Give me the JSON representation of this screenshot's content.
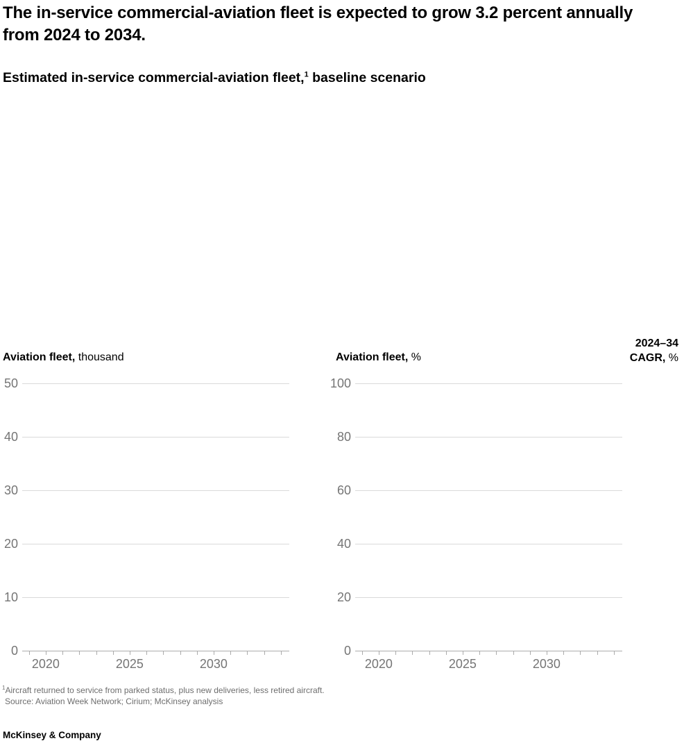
{
  "colors": {
    "background": "#ffffff",
    "text": "#000000",
    "axis_label_gray": "#757575",
    "gridline_gray": "#d9d9d9",
    "axis_line_gray": "#ababab",
    "footnote_gray": "#6e6e6e"
  },
  "title": "The in-service commercial-aviation fleet is expected to grow 3.2 percent annually from 2024 to 2034.",
  "subtitle": {
    "before_sup": "Estimated in-service commercial-aviation fleet,",
    "sup": "1",
    "after_sup": " baseline scenario"
  },
  "cagr_header": {
    "line1": "2024–34",
    "line2_bold": "CAGR,",
    "line2_rest": " %"
  },
  "chart_data": [
    {
      "type": "bar",
      "header_bold": "Aviation fleet,",
      "header_rest": " thousand",
      "ylabel": "Aviation fleet, thousand",
      "y_ticks": [
        50,
        40,
        30,
        20,
        10,
        0
      ],
      "ylim": [
        0,
        50
      ],
      "x_axis_years_start": 2019,
      "x_axis_years_end": 2034,
      "x_labels": [
        2020,
        2025,
        2030
      ],
      "grid": true,
      "legend": "none",
      "series": []
    },
    {
      "type": "bar",
      "header_bold": "Aviation fleet,",
      "header_rest": " %",
      "ylabel": "Aviation fleet, %",
      "y_ticks": [
        100,
        80,
        60,
        40,
        20,
        0
      ],
      "ylim": [
        0,
        100
      ],
      "x_axis_years_start": 2019,
      "x_axis_years_end": 2034,
      "x_labels": [
        2020,
        2025,
        2030
      ],
      "grid": true,
      "legend": "none",
      "series": []
    }
  ],
  "footnote": {
    "sup": "1",
    "line1": "Aircraft returned to service from parked status, plus new deliveries, less retired aircraft.",
    "line2": "Source: Aviation Week Network; Cirium; McKinsey analysis"
  },
  "footer": {
    "brand": "McKinsey & Company"
  }
}
